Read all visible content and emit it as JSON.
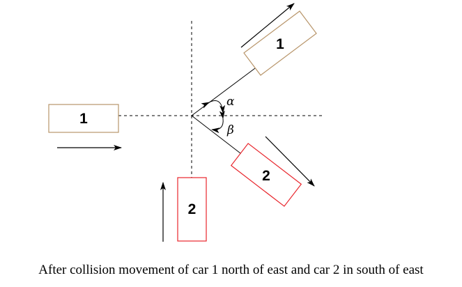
{
  "colors": {
    "car1": "#b8956a",
    "car2": "#e8242b",
    "line": "#000000"
  },
  "car1_before": {
    "label": "1"
  },
  "car1_after": {
    "label": "1"
  },
  "car2_before": {
    "label": "2"
  },
  "car2_after": {
    "label": "2"
  },
  "angles": {
    "alpha": "α",
    "beta": "β"
  },
  "caption": "After collision movement of car 1 north of east and car 2 in south of east"
}
